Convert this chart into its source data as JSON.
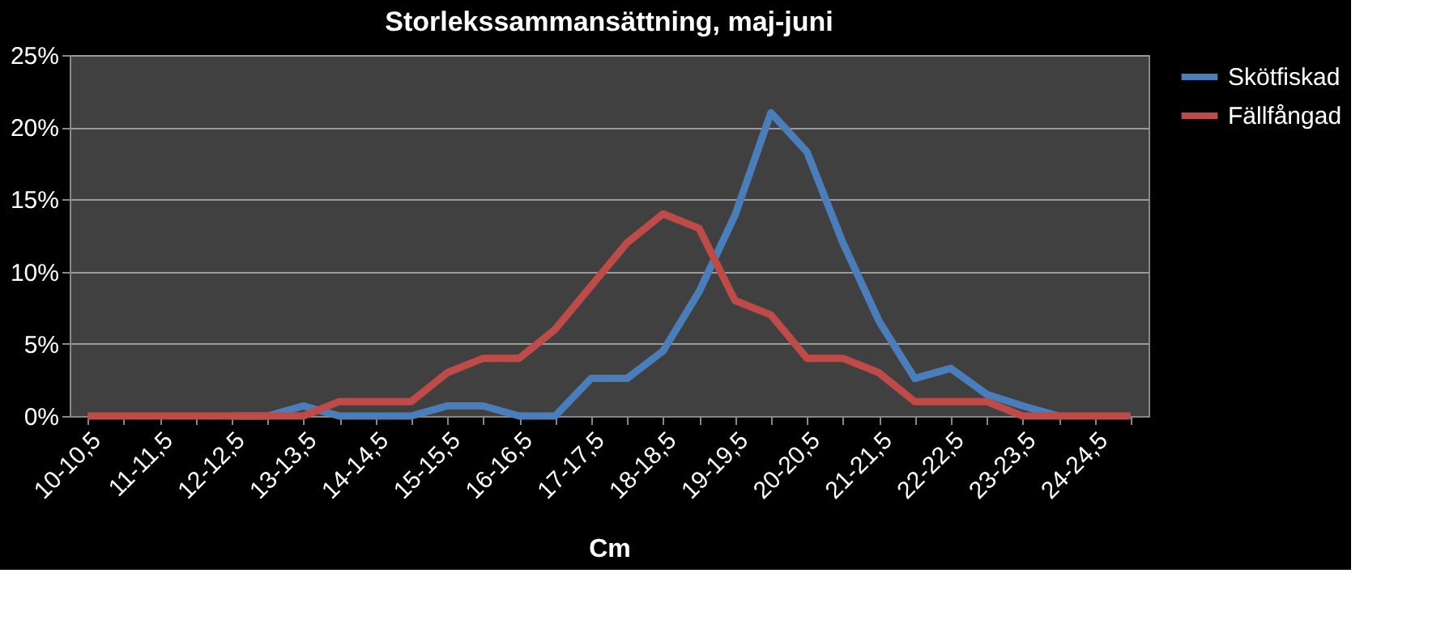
{
  "chart_data": {
    "type": "line",
    "title": "Storlekssammansättning, maj-juni",
    "xlabel": "Cm",
    "categories": [
      "10-10,5",
      null,
      "11-11,5",
      null,
      "12-12,5",
      null,
      "13-13,5",
      null,
      "14-14,5",
      null,
      "15-15,5",
      null,
      "16-16,5",
      null,
      "17-17,5",
      null,
      "18-18,5",
      null,
      "19-19,5",
      null,
      "20-20,5",
      null,
      "21-21,5",
      null,
      "22-22,5",
      null,
      "23-23,5",
      null,
      "24-24,5",
      null
    ],
    "series": [
      {
        "name": "Skötfiskad",
        "color": "#4a7ebb",
        "values": [
          null,
          null,
          null,
          null,
          0,
          0,
          0.7,
          0,
          0,
          0,
          0.7,
          0.7,
          0,
          0,
          2.6,
          2.6,
          4.5,
          8.6,
          13.9,
          21.0,
          18.3,
          12.0,
          6.6,
          2.6,
          3.3,
          1.5,
          0.7,
          0,
          null,
          null
        ]
      },
      {
        "name": "Fällfångad",
        "color": "#be4b48",
        "values": [
          0,
          0,
          0,
          0,
          0,
          0,
          0,
          1.0,
          1.0,
          1.0,
          3.0,
          4.0,
          4.0,
          6.0,
          9.0,
          12.0,
          14.0,
          13.0,
          8.0,
          7.0,
          4.0,
          4.0,
          3.0,
          1.0,
          1.0,
          1.0,
          0,
          0,
          0,
          0
        ]
      }
    ],
    "ylim": [
      0,
      25
    ],
    "yticks": [
      {
        "value": 0,
        "label": "0%"
      },
      {
        "value": 5,
        "label": "5%"
      },
      {
        "value": 10,
        "label": "10%"
      },
      {
        "value": 15,
        "label": "15%"
      },
      {
        "value": 20,
        "label": "20%"
      },
      {
        "value": 25,
        "label": "25%"
      }
    ],
    "grid": "y",
    "legend": "right",
    "marker": "none",
    "line_style": "solid"
  }
}
